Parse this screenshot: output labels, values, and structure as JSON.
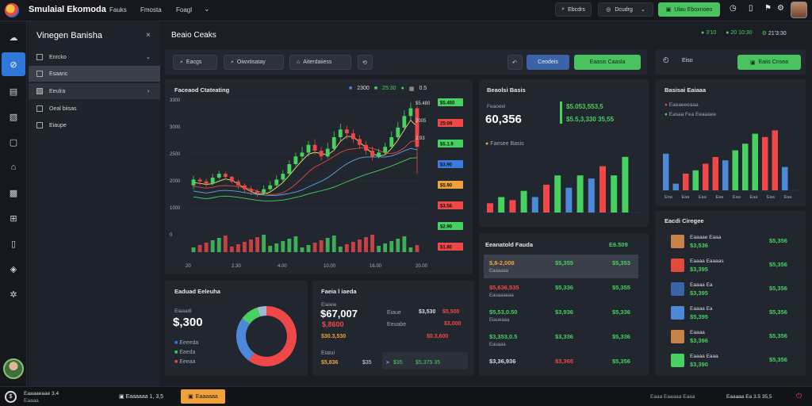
{
  "header": {
    "app_name": "Smulaial Ekomoda",
    "menu": [
      "Fauks",
      "Fmosta",
      "Foagl"
    ],
    "search_label": "Ebcdrs",
    "dropdown_label": "Dcudrg",
    "action_button": "Ulau Eboxnoeo"
  },
  "sidebar": {
    "title": "Vinegen Banisha",
    "items": [
      {
        "label": "Enrcko"
      },
      {
        "label": "Esaanc"
      },
      {
        "label": "Eeulra"
      },
      {
        "label": "Oeal biisas"
      },
      {
        "label": "Eiaupe"
      }
    ]
  },
  "main": {
    "title": "Beaio Ceaks",
    "status": [
      {
        "icon": "green-dot-icon",
        "text": "3'10"
      },
      {
        "icon": "green-dot-icon",
        "text": "20 10:30"
      },
      {
        "icon": "gear-icon",
        "text": "21'3:30"
      }
    ],
    "filters": [
      "Eacgs",
      "Oiwxtisatay",
      "Aiterdaiiess"
    ],
    "filter_button_blue": "Ceodeis",
    "filter_button_green": "Eaasis Caasla"
  },
  "right_controls": {
    "label": "Eiso",
    "button": "Eaiis Cnsea"
  },
  "candle_panel": {
    "title": "Faceaod Ctateating",
    "top_values": [
      "2300",
      "25:30",
      "0.5"
    ],
    "y_ticks": [
      "3300",
      "3000",
      "2500",
      "2000",
      "1000",
      "0"
    ],
    "x_ticks": [
      "20",
      "2.30",
      "4.00",
      "10.00",
      "16.00",
      "20.00"
    ],
    "price_tags": [
      {
        "text": "$5.450",
        "color": "#46d160"
      },
      {
        "text": "25:09",
        "color": "#f04848"
      },
      {
        "text": "$5.1.9",
        "color": "#46d160"
      },
      {
        "text": "$3.90",
        "color": "#3b7be0"
      },
      {
        "text": "$5.90",
        "color": "#f0a23a"
      },
      {
        "text": "$3.56",
        "color": "#f04848"
      },
      {
        "text": "$2.90",
        "color": "#46d160"
      },
      {
        "text": "$1.80",
        "color": "#f04848"
      }
    ],
    "tag_labels": [
      "$5.480",
      "2005",
      "2.93"
    ]
  },
  "candle_data": [
    {
      "o": 1200,
      "c": 1350,
      "h": 1450,
      "l": 1100
    },
    {
      "o": 1350,
      "c": 1300,
      "h": 1400,
      "l": 1200
    },
    {
      "o": 1300,
      "c": 1250,
      "h": 1380,
      "l": 1150
    },
    {
      "o": 1250,
      "c": 1400,
      "h": 1500,
      "l": 1200
    },
    {
      "o": 1400,
      "c": 1500,
      "h": 1580,
      "l": 1350
    },
    {
      "o": 1500,
      "c": 1420,
      "h": 1550,
      "l": 1350
    },
    {
      "o": 1420,
      "c": 1300,
      "h": 1450,
      "l": 1250
    },
    {
      "o": 1300,
      "c": 1200,
      "h": 1350,
      "l": 1100
    },
    {
      "o": 1200,
      "c": 1100,
      "h": 1250,
      "l": 1000
    },
    {
      "o": 1100,
      "c": 1050,
      "h": 1180,
      "l": 950
    },
    {
      "o": 1050,
      "c": 1000,
      "h": 1100,
      "l": 900
    },
    {
      "o": 1000,
      "c": 1100,
      "h": 1200,
      "l": 950
    },
    {
      "o": 1100,
      "c": 1200,
      "h": 1300,
      "l": 1050
    },
    {
      "o": 1200,
      "c": 1350,
      "h": 1450,
      "l": 1150
    },
    {
      "o": 1350,
      "c": 1500,
      "h": 1600,
      "l": 1300
    },
    {
      "o": 1500,
      "c": 1750,
      "h": 1850,
      "l": 1450
    },
    {
      "o": 1750,
      "c": 1950,
      "h": 2050,
      "l": 1700
    },
    {
      "o": 1950,
      "c": 2050,
      "h": 2200,
      "l": 1850
    },
    {
      "o": 2050,
      "c": 2250,
      "h": 2350,
      "l": 1950
    },
    {
      "o": 2250,
      "c": 2100,
      "h": 2400,
      "l": 2000
    },
    {
      "o": 2100,
      "c": 1950,
      "h": 2200,
      "l": 1850
    },
    {
      "o": 1950,
      "c": 2150,
      "h": 2300,
      "l": 1900
    },
    {
      "o": 2150,
      "c": 2450,
      "h": 2600,
      "l": 2100
    },
    {
      "o": 2450,
      "c": 2650,
      "h": 2800,
      "l": 2350
    },
    {
      "o": 2650,
      "c": 2550,
      "h": 2750,
      "l": 2400
    },
    {
      "o": 2550,
      "c": 2400,
      "h": 2650,
      "l": 2300
    },
    {
      "o": 2400,
      "c": 2250,
      "h": 2500,
      "l": 2150
    },
    {
      "o": 2250,
      "c": 2100,
      "h": 2350,
      "l": 2000
    },
    {
      "o": 2100,
      "c": 1950,
      "h": 2200,
      "l": 1850
    },
    {
      "o": 1950,
      "c": 2050,
      "h": 2150,
      "l": 1900
    },
    {
      "o": 2050,
      "c": 2200,
      "h": 2300,
      "l": 2000
    },
    {
      "o": 2200,
      "c": 2450,
      "h": 2600,
      "l": 2150
    },
    {
      "o": 2450,
      "c": 2700,
      "h": 2850,
      "l": 2400
    },
    {
      "o": 2700,
      "c": 3000,
      "h": 3150,
      "l": 2650
    },
    {
      "o": 3000,
      "c": 3200,
      "h": 3350,
      "l": 2900
    },
    {
      "o": 3200,
      "c": 2200,
      "h": 3250,
      "l": 1500
    }
  ],
  "summary_panel": {
    "title": "Eaduad Eeleuha",
    "sub": "Eiaaadi",
    "value": "$,300",
    "legend": [
      {
        "label": "Eeeeda",
        "color": "#3b7be0"
      },
      {
        "label": "Eaeda",
        "color": "#46d160"
      },
      {
        "label": "Eeeaa",
        "color": "#f04848"
      }
    ],
    "donut": [
      {
        "value": 30,
        "color": "#f04848"
      },
      {
        "value": 30,
        "color": "#f04848"
      },
      {
        "value": 25,
        "color": "#4d89d8"
      },
      {
        "value": 10,
        "color": "#46d160"
      },
      {
        "value": 5,
        "color": "#9fb9d4"
      }
    ]
  },
  "price_panel": {
    "title": "Faeia l iaeda",
    "sub": "Eiaieie",
    "value_main": "$67,007",
    "value_sub": "$,8600",
    "row1_left": "Eiaue",
    "row1_right": "$3,530",
    "row1_right2": "$5,500",
    "row2_left": "Eeuabe",
    "row2_mid": "$3,000",
    "row2_right": "$30.3,530",
    "row3_left": "Eiaiui",
    "row3_mid": "$0.3,600",
    "row4_left": "$5,836",
    "row4_mid": "$35",
    "row4_arrow": "$35",
    "row4_right": "$5,375 35"
  },
  "stats_panel": {
    "title": "Beaolsi Basis",
    "sub": "Feaoeel",
    "value": "60,356",
    "lines": [
      "$5.053,553,5",
      "$5.5,3,330 35,55"
    ],
    "legend": "Faesee Basis",
    "bars": [
      15,
      25,
      20,
      35,
      25,
      45,
      60,
      40,
      60,
      55,
      75,
      60,
      90
    ]
  },
  "right_chart": {
    "title": "Basisai Eaiaaa",
    "legend": [
      {
        "label": "Eaeaeeeaaa",
        "color": "#f04848"
      },
      {
        "label": "Easaa Fea Eeaaaee",
        "color": "#46d160"
      }
    ],
    "x_ticks": [
      "Ena",
      "Eaa",
      "Eaa",
      "Eaa",
      "Eaa",
      "Eaa",
      "Eaa",
      "Eaa"
    ],
    "bars": [
      {
        "value": 55,
        "color": "#4d89d8"
      },
      {
        "value": 10,
        "color": "#4d89d8"
      },
      {
        "value": 25,
        "color": "#f04848"
      },
      {
        "value": 30,
        "color": "#46d160"
      },
      {
        "value": 40,
        "color": "#f04848"
      },
      {
        "value": 50,
        "color": "#f04848"
      },
      {
        "value": 45,
        "color": "#4d89d8"
      },
      {
        "value": 60,
        "color": "#46d160"
      },
      {
        "value": 70,
        "color": "#46d160"
      },
      {
        "value": 85,
        "color": "#46d160"
      },
      {
        "value": 80,
        "color": "#f04848"
      },
      {
        "value": 90,
        "color": "#f04848"
      },
      {
        "value": 35,
        "color": "#4d89d8"
      }
    ]
  },
  "orders_panel": {
    "title": "Eeanatold Fauda",
    "header_right": "E6.509",
    "rows": [
      {
        "left": "$,8-2,008",
        "left_color": "#f0a23a",
        "sub": "Eaaaaaa",
        "mid": "$5,355",
        "right": "$5,353"
      },
      {
        "left": "$5,636,535",
        "left_color": "#f04848",
        "sub": "Eauaaaeaa",
        "mid": "$5,336",
        "right": "$5,355"
      },
      {
        "left": "$5,53,0.50",
        "left_color": "#46d160",
        "sub": "Eiaueaaa",
        "mid": "$3,936",
        "right": "$5,336"
      },
      {
        "left": "$3,353,0.5",
        "left_color": "#46d160",
        "sub": "Eauaaa",
        "mid": "$3,336",
        "right": "$5,336"
      },
      {
        "left": "$3,36,936",
        "left_color": "#d8dce4",
        "sub": "",
        "mid": "$3,365",
        "right": "$5,356"
      }
    ]
  },
  "list_panel": {
    "title": "Eacdi Ciregee",
    "items": [
      {
        "name": "Eaaaae Eaaa",
        "value": "$3,536",
        "amount": "$5,356",
        "color": "#c8834a"
      },
      {
        "name": "Eaaaa Eaaaas",
        "value": "$3,395",
        "amount": "$5,356",
        "color": "#e24a3b"
      },
      {
        "name": "Eaaaa Ea",
        "value": "$3,395",
        "amount": "$5,356",
        "color": "#3b64a8"
      },
      {
        "name": "Eaaaa Ea",
        "value": "$5,395",
        "amount": "$5,356",
        "color": "#4d89d8"
      },
      {
        "name": "Eaaaa",
        "value": "$3,396",
        "amount": "$5,356",
        "color": "#c8834a"
      },
      {
        "name": "Eaaaa Eaaa",
        "value": "$3,390",
        "amount": "$5,356",
        "color": "#46d160"
      }
    ]
  },
  "footer": {
    "user_line1": "Eaaaaeaae 3,4",
    "user_line2": "Eaaaa",
    "mid_text": "Eaaaaaa 1, 3,5",
    "button": "Eaaaaaa",
    "right_text": "Eaaa Eaaaaa Eaaa",
    "right_value": "Eaaaaa Ea 3.5 35,5"
  },
  "colors": {
    "accent_blue": "#2f78d8",
    "up": "#46d160",
    "down": "#f04848",
    "warn": "#f0a23a"
  }
}
